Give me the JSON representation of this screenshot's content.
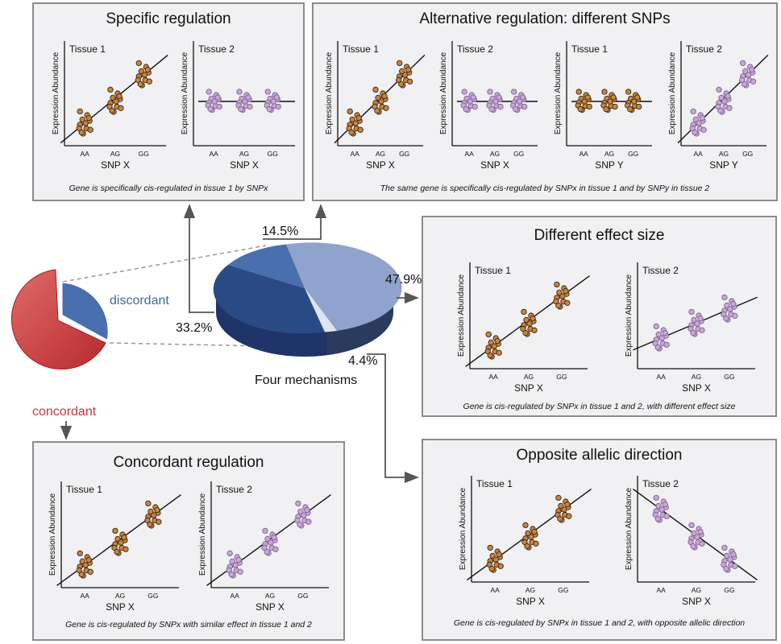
{
  "colors": {
    "orange": "#c9843e",
    "purple": "#c9a6d8",
    "blue_dark": "#2a4a86",
    "blue_mid": "#4a6fae",
    "blue_light": "#8fa3cc",
    "red": "#c8373a"
  },
  "panels": {
    "specific": {
      "title": "Specific regulation",
      "caption": "Gene is specifically cis-regulated in tissue 1 by SNPx",
      "plots": [
        {
          "tissue": "Tissue 1",
          "ylabel": "Expression Abundance",
          "xlabel": "SNP X",
          "ticks": [
            "AA",
            "AG",
            "GG"
          ],
          "color": "orange",
          "pattern": "increasing"
        },
        {
          "tissue": "Tissue 2",
          "ylabel": "Expression Abundance",
          "xlabel": "SNP X",
          "ticks": [
            "AA",
            "AG",
            "GG"
          ],
          "color": "purple",
          "pattern": "flat"
        }
      ]
    },
    "alternative": {
      "title": "Alternative  regulation: different SNPs",
      "caption": "The same gene is specifically cis-regulated by SNPx in tissue 1 and by SNPy in tissue 2",
      "plots": [
        {
          "tissue": "Tissue 1",
          "ylabel": "Expression Abundance",
          "xlabel": "SNP X",
          "ticks": [
            "AA",
            "AG",
            "GG"
          ],
          "color": "orange",
          "pattern": "increasing"
        },
        {
          "tissue": "Tissue 2",
          "ylabel": "Expression Abundance",
          "xlabel": "SNP X",
          "ticks": [
            "AA",
            "AG",
            "GG"
          ],
          "color": "purple",
          "pattern": "flat"
        },
        {
          "tissue": "Tissue 1",
          "ylabel": "Expression Abundance",
          "xlabel": "SNP Y",
          "ticks": [
            "AA",
            "AG",
            "GG"
          ],
          "color": "orange",
          "pattern": "flat"
        },
        {
          "tissue": "Tissue 2",
          "ylabel": "Expression Abundance",
          "xlabel": "SNP Y",
          "ticks": [
            "AA",
            "AG",
            "GG"
          ],
          "color": "purple",
          "pattern": "increasing"
        }
      ]
    },
    "effect": {
      "title": "Different effect size",
      "caption": "Gene is cis-regulated by SNPx in tissue 1 and 2, with different effect size",
      "plots": [
        {
          "tissue": "Tissue 1",
          "ylabel": "Expression Abundance",
          "xlabel": "SNP X",
          "ticks": [
            "AA",
            "AG",
            "GG"
          ],
          "color": "orange",
          "pattern": "increasing"
        },
        {
          "tissue": "Tissue 2",
          "ylabel": "Expression Abundance",
          "xlabel": "SNP X",
          "ticks": [
            "AA",
            "AG",
            "GG"
          ],
          "color": "purple",
          "pattern": "shallow"
        }
      ]
    },
    "concordant": {
      "title": "Concordant regulation",
      "caption": "Gene is cis-regulated by SNPx with similar effect in tissue 1 and 2",
      "plots": [
        {
          "tissue": "Tissue 1",
          "ylabel": "Expression Abundance",
          "xlabel": "SNP X",
          "ticks": [
            "AA",
            "AG",
            "GG"
          ],
          "color": "orange",
          "pattern": "increasing"
        },
        {
          "tissue": "Tissue 2",
          "ylabel": "Expression Abundance",
          "xlabel": "SNP X",
          "ticks": [
            "AA",
            "AG",
            "GG"
          ],
          "color": "purple",
          "pattern": "increasing"
        }
      ]
    },
    "opposite": {
      "title": "Opposite allelic direction",
      "caption": "Gene is cis-regulated by SNPx in tissue 1 and 2, with opposite allelic direction",
      "plots": [
        {
          "tissue": "Tissue 1",
          "ylabel": "Expression Abundance",
          "xlabel": "SNP X",
          "ticks": [
            "AA",
            "AG",
            "GG"
          ],
          "color": "orange",
          "pattern": "increasing"
        },
        {
          "tissue": "Tissue 2",
          "ylabel": "Expression Abundance",
          "xlabel": "SNP X",
          "ticks": [
            "AA",
            "AG",
            "GG"
          ],
          "color": "purple",
          "pattern": "decreasing"
        }
      ]
    }
  },
  "pie_small": {
    "discordant_label": "discordant",
    "concordant_label": "concordant"
  },
  "pie_main": {
    "label": "Four mechanisms",
    "slices": [
      {
        "mechanism": "Different effect size",
        "percent": 47.9,
        "label": "47.9%"
      },
      {
        "mechanism": "Opposite allelic direction",
        "percent": 4.4,
        "label": "4.4%"
      },
      {
        "mechanism": "Specific regulation",
        "percent": 33.2,
        "label": "33.2%"
      },
      {
        "mechanism": "Alternative regulation: different SNPs",
        "percent": 14.5,
        "label": "14.5%"
      }
    ]
  }
}
